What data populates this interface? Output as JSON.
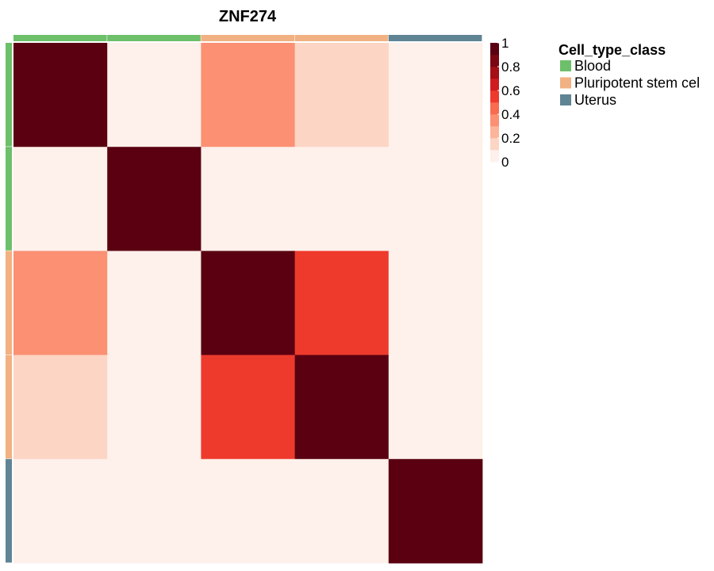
{
  "chart_data": {
    "type": "heatmap",
    "title": "ZNF274",
    "n": 5,
    "matrix": [
      [
        1.0,
        0.0,
        0.3,
        0.15,
        0.0
      ],
      [
        0.0,
        1.0,
        0.0,
        0.0,
        0.0
      ],
      [
        0.3,
        0.0,
        1.0,
        0.5,
        0.0
      ],
      [
        0.15,
        0.0,
        0.5,
        1.0,
        0.0
      ],
      [
        0.0,
        0.0,
        0.0,
        0.0,
        1.0
      ]
    ],
    "annotation": [
      "Blood",
      "Blood",
      "Pluripotent stem cell",
      "Pluripotent stem cell",
      "Uterus"
    ],
    "colorbar": {
      "ticks": [
        "1",
        "0.8",
        "0.6",
        "0.4",
        "0.2",
        "0"
      ],
      "range": [
        0,
        1
      ],
      "steps": [
        "#fef0ea",
        "#fcd5c4",
        "#fcb49a",
        "#fb9073",
        "#f86b4f",
        "#ee3a2c",
        "#cf1c1f",
        "#a50f15",
        "#7b0611",
        "#5a0011"
      ]
    },
    "legend": {
      "title": "Cell_type_class",
      "placement": "right",
      "items": [
        {
          "label": "Blood",
          "color": "#6dbf6a"
        },
        {
          "label": "Pluripotent stem cel",
          "color": "#f2b182"
        },
        {
          "label": "Uterus",
          "color": "#5f8494"
        }
      ]
    },
    "class_colors": {
      "Blood": "#6dbf6a",
      "Pluripotent stem cell": "#f2b182",
      "Uterus": "#5f8494"
    }
  }
}
